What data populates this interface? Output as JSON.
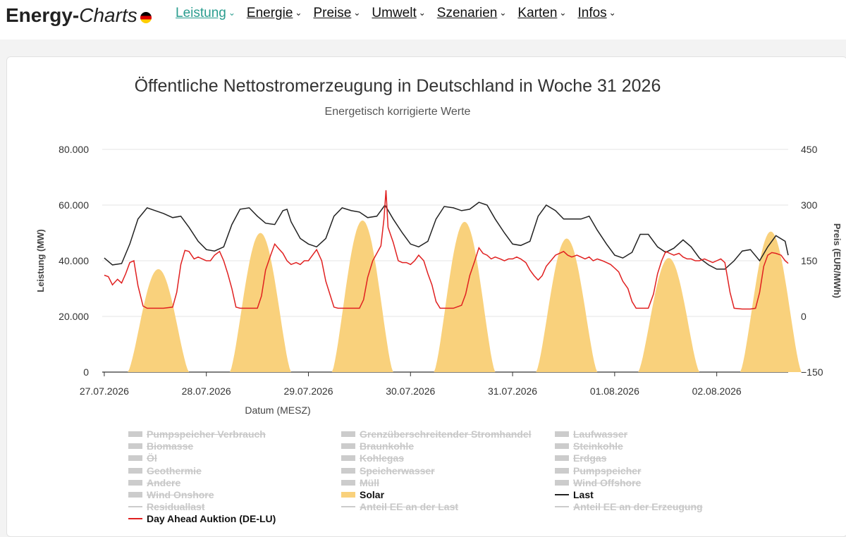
{
  "header": {
    "brand_bold": "Energy-",
    "brand_italic": "Charts",
    "nav": [
      {
        "label": "Leistung",
        "active": true
      },
      {
        "label": "Energie",
        "active": false
      },
      {
        "label": "Preise",
        "active": false
      },
      {
        "label": "Umwelt",
        "active": false
      },
      {
        "label": "Szenarien",
        "active": false
      },
      {
        "label": "Karten",
        "active": false
      },
      {
        "label": "Infos",
        "active": false
      }
    ]
  },
  "chart_data": {
    "type": "area",
    "title": "Öffentliche Nettostromerzeugung in Deutschland in Woche 31 2026",
    "subtitle": "Energetisch korrigierte Werte",
    "xlabel": "Datum (MESZ)",
    "ylabel": "Leistung (MW)",
    "y2label": "Preis (EUR/MWh)",
    "ylim": [
      0,
      80000
    ],
    "y2lim": [
      -150,
      450
    ],
    "yticks": [
      "80.000",
      "60.000",
      "40.000",
      "20.000",
      "0"
    ],
    "y2ticks": [
      "450",
      "300",
      "150",
      "0",
      "−150"
    ],
    "xticks": [
      "27.07.2026",
      "28.07.2026",
      "29.07.2026",
      "30.07.2026",
      "31.07.2026",
      "01.08.2026",
      "02.08.2026"
    ],
    "x_range_days": [
      -0.02,
      6.7
    ],
    "grid": true,
    "colors": {
      "solar": "#f9d17c",
      "solar_forecast": "#fbe6a8",
      "last": "#222222",
      "price": "#e02020",
      "legend_off": "#cccccc"
    },
    "solar_days": [
      {
        "day": 0,
        "peak": 37000
      },
      {
        "day": 1,
        "peak": 50000
      },
      {
        "day": 2,
        "peak": 54500
      },
      {
        "day": 3,
        "peak": 54000
      },
      {
        "day": 4,
        "peak": 48000
      },
      {
        "day": 5,
        "peak": 41000
      },
      {
        "day": 6,
        "peak": 50500
      }
    ],
    "last_series": [
      [
        0,
        41000
      ],
      [
        0.08,
        38500
      ],
      [
        0.17,
        39000
      ],
      [
        0.25,
        46000
      ],
      [
        0.33,
        55000
      ],
      [
        0.42,
        59000
      ],
      [
        0.5,
        58000
      ],
      [
        0.58,
        57000
      ],
      [
        0.67,
        55500
      ],
      [
        0.75,
        56000
      ],
      [
        0.83,
        52000
      ],
      [
        0.92,
        47000
      ],
      [
        1.0,
        44000
      ],
      [
        1.08,
        43500
      ],
      [
        1.17,
        45000
      ],
      [
        1.25,
        53000
      ],
      [
        1.33,
        58500
      ],
      [
        1.42,
        59000
      ],
      [
        1.5,
        56000
      ],
      [
        1.58,
        53500
      ],
      [
        1.67,
        53000
      ],
      [
        1.75,
        58000
      ],
      [
        1.79,
        58500
      ],
      [
        1.83,
        54000
      ],
      [
        1.92,
        48000
      ],
      [
        2.0,
        46000
      ],
      [
        2.08,
        45000
      ],
      [
        2.17,
        48000
      ],
      [
        2.25,
        56000
      ],
      [
        2.33,
        59000
      ],
      [
        2.42,
        58000
      ],
      [
        2.5,
        57500
      ],
      [
        2.58,
        55500
      ],
      [
        2.67,
        56000
      ],
      [
        2.75,
        60000
      ],
      [
        2.83,
        55000
      ],
      [
        2.92,
        50000
      ],
      [
        3.0,
        46000
      ],
      [
        3.08,
        45000
      ],
      [
        3.17,
        47000
      ],
      [
        3.25,
        55000
      ],
      [
        3.33,
        59500
      ],
      [
        3.42,
        59000
      ],
      [
        3.5,
        58000
      ],
      [
        3.58,
        58500
      ],
      [
        3.67,
        61000
      ],
      [
        3.75,
        60000
      ],
      [
        3.83,
        55000
      ],
      [
        3.92,
        50000
      ],
      [
        4.0,
        46000
      ],
      [
        4.08,
        45500
      ],
      [
        4.17,
        47000
      ],
      [
        4.25,
        56000
      ],
      [
        4.33,
        60000
      ],
      [
        4.42,
        58000
      ],
      [
        4.5,
        55000
      ],
      [
        4.58,
        55000
      ],
      [
        4.67,
        55000
      ],
      [
        4.75,
        56000
      ],
      [
        4.83,
        51000
      ],
      [
        4.92,
        46000
      ],
      [
        5.0,
        42000
      ],
      [
        5.08,
        41000
      ],
      [
        5.17,
        43000
      ],
      [
        5.25,
        49500
      ],
      [
        5.33,
        49500
      ],
      [
        5.42,
        45000
      ],
      [
        5.5,
        43000
      ],
      [
        5.58,
        44500
      ],
      [
        5.67,
        47500
      ],
      [
        5.75,
        45000
      ],
      [
        5.83,
        41000
      ],
      [
        5.92,
        38500
      ],
      [
        6.0,
        37000
      ],
      [
        6.08,
        37000
      ],
      [
        6.17,
        40000
      ],
      [
        6.25,
        43500
      ],
      [
        6.33,
        44000
      ],
      [
        6.42,
        40000
      ],
      [
        6.5,
        45000
      ],
      [
        6.58,
        49000
      ],
      [
        6.67,
        47000
      ],
      [
        6.7,
        42000
      ]
    ],
    "price_series": [
      [
        0,
        111
      ],
      [
        0.04,
        107
      ],
      [
        0.08,
        85
      ],
      [
        0.13,
        100
      ],
      [
        0.17,
        90
      ],
      [
        0.21,
        115
      ],
      [
        0.25,
        145
      ],
      [
        0.29,
        150
      ],
      [
        0.33,
        83
      ],
      [
        0.38,
        28
      ],
      [
        0.42,
        22
      ],
      [
        0.5,
        22
      ],
      [
        0.58,
        22
      ],
      [
        0.67,
        25
      ],
      [
        0.71,
        65
      ],
      [
        0.75,
        140
      ],
      [
        0.79,
        178
      ],
      [
        0.83,
        175
      ],
      [
        0.88,
        155
      ],
      [
        0.92,
        160
      ],
      [
        0.96,
        155
      ],
      [
        1.0,
        150
      ],
      [
        1.04,
        150
      ],
      [
        1.08,
        165
      ],
      [
        1.13,
        175
      ],
      [
        1.17,
        150
      ],
      [
        1.21,
        115
      ],
      [
        1.25,
        75
      ],
      [
        1.29,
        25
      ],
      [
        1.33,
        22
      ],
      [
        1.42,
        22
      ],
      [
        1.5,
        22
      ],
      [
        1.54,
        55
      ],
      [
        1.58,
        125
      ],
      [
        1.63,
        165
      ],
      [
        1.67,
        195
      ],
      [
        1.71,
        182
      ],
      [
        1.75,
        170
      ],
      [
        1.79,
        150
      ],
      [
        1.83,
        140
      ],
      [
        1.88,
        145
      ],
      [
        1.92,
        140
      ],
      [
        1.96,
        150
      ],
      [
        2.0,
        150
      ],
      [
        2.04,
        165
      ],
      [
        2.08,
        180
      ],
      [
        2.13,
        150
      ],
      [
        2.17,
        95
      ],
      [
        2.21,
        60
      ],
      [
        2.25,
        25
      ],
      [
        2.29,
        22
      ],
      [
        2.42,
        22
      ],
      [
        2.5,
        22
      ],
      [
        2.54,
        45
      ],
      [
        2.58,
        105
      ],
      [
        2.63,
        150
      ],
      [
        2.67,
        170
      ],
      [
        2.71,
        190
      ],
      [
        2.74,
        262
      ],
      [
        2.76,
        340
      ],
      [
        2.78,
        240
      ],
      [
        2.83,
        200
      ],
      [
        2.88,
        150
      ],
      [
        2.92,
        145
      ],
      [
        2.96,
        145
      ],
      [
        3.0,
        140
      ],
      [
        3.04,
        150
      ],
      [
        3.08,
        165
      ],
      [
        3.13,
        150
      ],
      [
        3.17,
        115
      ],
      [
        3.21,
        85
      ],
      [
        3.25,
        40
      ],
      [
        3.29,
        22
      ],
      [
        3.33,
        22
      ],
      [
        3.42,
        22
      ],
      [
        3.5,
        30
      ],
      [
        3.54,
        60
      ],
      [
        3.58,
        110
      ],
      [
        3.63,
        150
      ],
      [
        3.67,
        185
      ],
      [
        3.71,
        170
      ],
      [
        3.75,
        165
      ],
      [
        3.79,
        155
      ],
      [
        3.83,
        160
      ],
      [
        3.88,
        155
      ],
      [
        3.92,
        150
      ],
      [
        3.96,
        155
      ],
      [
        4.0,
        155
      ],
      [
        4.04,
        160
      ],
      [
        4.08,
        155
      ],
      [
        4.13,
        145
      ],
      [
        4.17,
        125
      ],
      [
        4.21,
        110
      ],
      [
        4.25,
        98
      ],
      [
        4.29,
        110
      ],
      [
        4.33,
        135
      ],
      [
        4.42,
        165
      ],
      [
        4.5,
        175
      ],
      [
        4.54,
        165
      ],
      [
        4.58,
        160
      ],
      [
        4.63,
        165
      ],
      [
        4.67,
        160
      ],
      [
        4.71,
        155
      ],
      [
        4.75,
        160
      ],
      [
        4.79,
        150
      ],
      [
        4.83,
        155
      ],
      [
        4.88,
        150
      ],
      [
        4.92,
        145
      ],
      [
        4.96,
        140
      ],
      [
        5.0,
        130
      ],
      [
        5.04,
        120
      ],
      [
        5.08,
        95
      ],
      [
        5.13,
        75
      ],
      [
        5.17,
        40
      ],
      [
        5.21,
        22
      ],
      [
        5.29,
        22
      ],
      [
        5.33,
        22
      ],
      [
        5.38,
        60
      ],
      [
        5.42,
        115
      ],
      [
        5.46,
        150
      ],
      [
        5.5,
        175
      ],
      [
        5.54,
        170
      ],
      [
        5.58,
        165
      ],
      [
        5.63,
        170
      ],
      [
        5.67,
        160
      ],
      [
        5.71,
        155
      ],
      [
        5.75,
        155
      ],
      [
        5.79,
        150
      ],
      [
        5.83,
        150
      ],
      [
        5.88,
        155
      ],
      [
        5.92,
        150
      ],
      [
        5.96,
        145
      ],
      [
        6.0,
        150
      ],
      [
        6.04,
        155
      ],
      [
        6.08,
        145
      ],
      [
        6.13,
        65
      ],
      [
        6.17,
        22
      ],
      [
        6.25,
        20
      ],
      [
        6.33,
        20
      ],
      [
        6.38,
        22
      ],
      [
        6.42,
        65
      ],
      [
        6.46,
        135
      ],
      [
        6.5,
        165
      ],
      [
        6.54,
        172
      ],
      [
        6.58,
        170
      ],
      [
        6.63,
        165
      ],
      [
        6.67,
        150
      ],
      [
        6.7,
        143
      ]
    ],
    "legend": [
      {
        "label": "Pumpspeicher Verbrauch",
        "enabled": false,
        "symbol": "box"
      },
      {
        "label": "Grenzüberschreitender Stromhandel",
        "enabled": false,
        "symbol": "box"
      },
      {
        "label": "Laufwasser",
        "enabled": false,
        "symbol": "box"
      },
      {
        "label": "Biomasse",
        "enabled": false,
        "symbol": "box"
      },
      {
        "label": "Braunkohle",
        "enabled": false,
        "symbol": "box"
      },
      {
        "label": "Steinkohle",
        "enabled": false,
        "symbol": "box"
      },
      {
        "label": "Öl",
        "enabled": false,
        "symbol": "box"
      },
      {
        "label": "Kohlegas",
        "enabled": false,
        "symbol": "box"
      },
      {
        "label": "Erdgas",
        "enabled": false,
        "symbol": "box"
      },
      {
        "label": "Geothermie",
        "enabled": false,
        "symbol": "box"
      },
      {
        "label": "Speicherwasser",
        "enabled": false,
        "symbol": "box"
      },
      {
        "label": "Pumpspeicher",
        "enabled": false,
        "symbol": "box"
      },
      {
        "label": "Andere",
        "enabled": false,
        "symbol": "box"
      },
      {
        "label": "Müll",
        "enabled": false,
        "symbol": "box"
      },
      {
        "label": "Wind Offshore",
        "enabled": false,
        "symbol": "box"
      },
      {
        "label": "Wind Onshore",
        "enabled": false,
        "symbol": "box"
      },
      {
        "label": "Solar",
        "enabled": true,
        "symbol": "box",
        "color": "#f9d17c"
      },
      {
        "label": "Last",
        "enabled": true,
        "symbol": "line",
        "color": "#222222"
      },
      {
        "label": "Residuallast",
        "enabled": false,
        "symbol": "line"
      },
      {
        "label": "Anteil EE an der Last",
        "enabled": false,
        "symbol": "line"
      },
      {
        "label": "Anteil EE an der Erzeugung",
        "enabled": false,
        "symbol": "line"
      },
      {
        "label": "Day Ahead Auktion (DE-LU)",
        "enabled": true,
        "symbol": "line",
        "color": "#e02020"
      }
    ]
  }
}
